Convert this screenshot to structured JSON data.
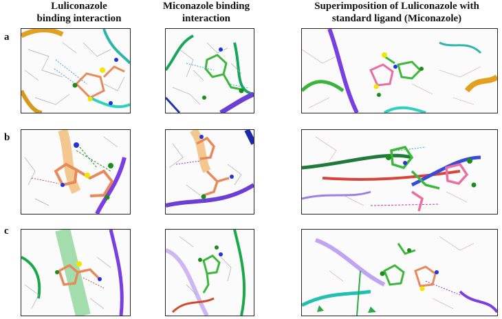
{
  "headers": {
    "col1": [
      "Luliconazole",
      "binding interaction"
    ],
    "col2": [
      "Miconazole binding",
      "interaction"
    ],
    "col3": [
      "Superimposition of Luliconazole with",
      "standard ligand (Miconazole)"
    ]
  },
  "rows": [
    "a",
    "b",
    "c"
  ],
  "colors": {
    "luliconazole": "#e8895a",
    "miconazole": "#3bb83b",
    "sulfur": "#f2e600",
    "nitrogen": "#2233dd",
    "chlorine": "#1c8c1c",
    "hbond": "#3aa0d8"
  }
}
